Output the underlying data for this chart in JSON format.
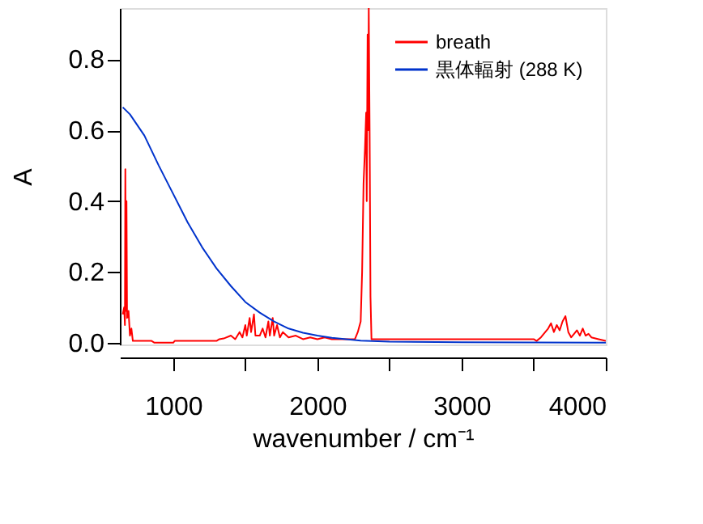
{
  "chart_data": {
    "type": "line",
    "xlabel": "wavenumber / cm⁻¹",
    "ylabel": "A",
    "xlim": [
      630,
      4000
    ],
    "ylim": [
      -0.005,
      0.945
    ],
    "xticks": [
      1000,
      {
        "value": 1500,
        "label": null
      },
      2000,
      {
        "value": 2500,
        "label": null
      },
      3000,
      {
        "value": 3500,
        "label": null
      },
      4000
    ],
    "yticks": [
      {
        "value": 0,
        "label": "0.0"
      },
      0.2,
      0.4,
      0.6,
      0.8
    ],
    "grid": false,
    "legend": "top right",
    "line_style": "solid",
    "marker": "none",
    "series": [
      {
        "name": "breath",
        "color": "#ff0000",
        "x": [
          650,
          660,
          665,
          668,
          672,
          676,
          680,
          690,
          700,
          710,
          720,
          750,
          850,
          870,
          1000,
          1010,
          1300,
          1320,
          1350,
          1400,
          1430,
          1460,
          1480,
          1500,
          1510,
          1530,
          1540,
          1560,
          1570,
          1600,
          1620,
          1640,
          1660,
          1670,
          1690,
          1700,
          1720,
          1740,
          1760,
          1800,
          1850,
          1900,
          1950,
          2000,
          2050,
          2100,
          2200,
          2260,
          2280,
          2300,
          2310,
          2320,
          2330,
          2338,
          2342,
          2348,
          2352,
          2356,
          2362,
          2368,
          2375,
          2500,
          3500,
          3520,
          3550,
          3580,
          3600,
          3620,
          3640,
          3660,
          3680,
          3700,
          3720,
          3740,
          3760,
          3780,
          3800,
          3820,
          3840,
          3860,
          3880,
          3900,
          3950,
          4000
        ],
        "values": [
          0.08,
          0.1,
          0.05,
          0.49,
          0.09,
          0.4,
          0.07,
          0.09,
          0.02,
          0.04,
          0.005,
          0.005,
          0.005,
          0.0,
          0.0,
          0.005,
          0.005,
          0.01,
          0.012,
          0.02,
          0.01,
          0.03,
          0.015,
          0.05,
          0.02,
          0.07,
          0.03,
          0.08,
          0.02,
          0.02,
          0.04,
          0.015,
          0.06,
          0.02,
          0.07,
          0.02,
          0.05,
          0.015,
          0.03,
          0.015,
          0.02,
          0.01,
          0.015,
          0.01,
          0.015,
          0.01,
          0.01,
          0.01,
          0.03,
          0.06,
          0.2,
          0.45,
          0.55,
          0.65,
          0.4,
          0.87,
          0.6,
          0.945,
          0.6,
          0.13,
          0.01,
          0.01,
          0.01,
          0.005,
          0.015,
          0.03,
          0.04,
          0.055,
          0.03,
          0.05,
          0.035,
          0.06,
          0.075,
          0.03,
          0.015,
          0.025,
          0.035,
          0.02,
          0.04,
          0.02,
          0.025,
          0.015,
          0.01,
          0.005
        ]
      },
      {
        "name": "黒体輻射  (288 K)",
        "color": "#0033cc",
        "x": [
          650,
          700,
          800,
          900,
          1000,
          1100,
          1200,
          1300,
          1400,
          1500,
          1600,
          1700,
          1800,
          1900,
          2000,
          2100,
          2200,
          2300,
          2500,
          3000,
          4000
        ],
        "values": [
          0.665,
          0.645,
          0.585,
          0.5,
          0.42,
          0.34,
          0.27,
          0.21,
          0.16,
          0.115,
          0.085,
          0.06,
          0.04,
          0.028,
          0.02,
          0.014,
          0.01,
          0.006,
          0.003,
          0.001,
          0.0
        ]
      }
    ]
  }
}
